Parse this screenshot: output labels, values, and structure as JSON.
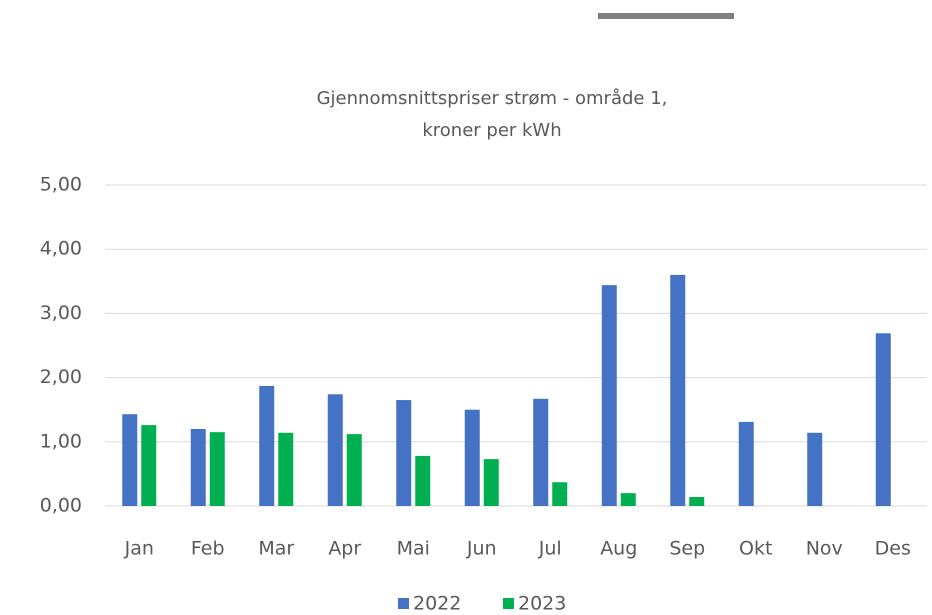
{
  "chart_data": {
    "type": "bar",
    "title": [
      "Gjennomsnittspriser strøm - område 1,",
      "kroner per kWh"
    ],
    "categories": [
      "Jan",
      "Feb",
      "Mar",
      "Apr",
      "Mai",
      "Jun",
      "Jul",
      "Aug",
      "Sep",
      "Okt",
      "Nov",
      "Des"
    ],
    "series": [
      {
        "name": "2022",
        "color": "#4472c4",
        "values": [
          1.43,
          1.2,
          1.87,
          1.74,
          1.65,
          1.5,
          1.67,
          3.44,
          3.6,
          1.31,
          1.14,
          2.69
        ]
      },
      {
        "name": "2023",
        "color": "#00b050",
        "values": [
          1.26,
          1.15,
          1.14,
          1.12,
          0.78,
          0.73,
          0.37,
          0.2,
          0.14,
          null,
          null,
          null
        ]
      }
    ],
    "ylim": [
      0,
      5
    ],
    "yticks": [
      {
        "value": 0,
        "label": "0,00"
      },
      {
        "value": 1,
        "label": "1,00"
      },
      {
        "value": 2,
        "label": "2,00"
      },
      {
        "value": 3,
        "label": "3,00"
      },
      {
        "value": 4,
        "label": "4,00"
      },
      {
        "value": 5,
        "label": "5,00"
      }
    ],
    "grid": true,
    "legend": "bottom"
  }
}
